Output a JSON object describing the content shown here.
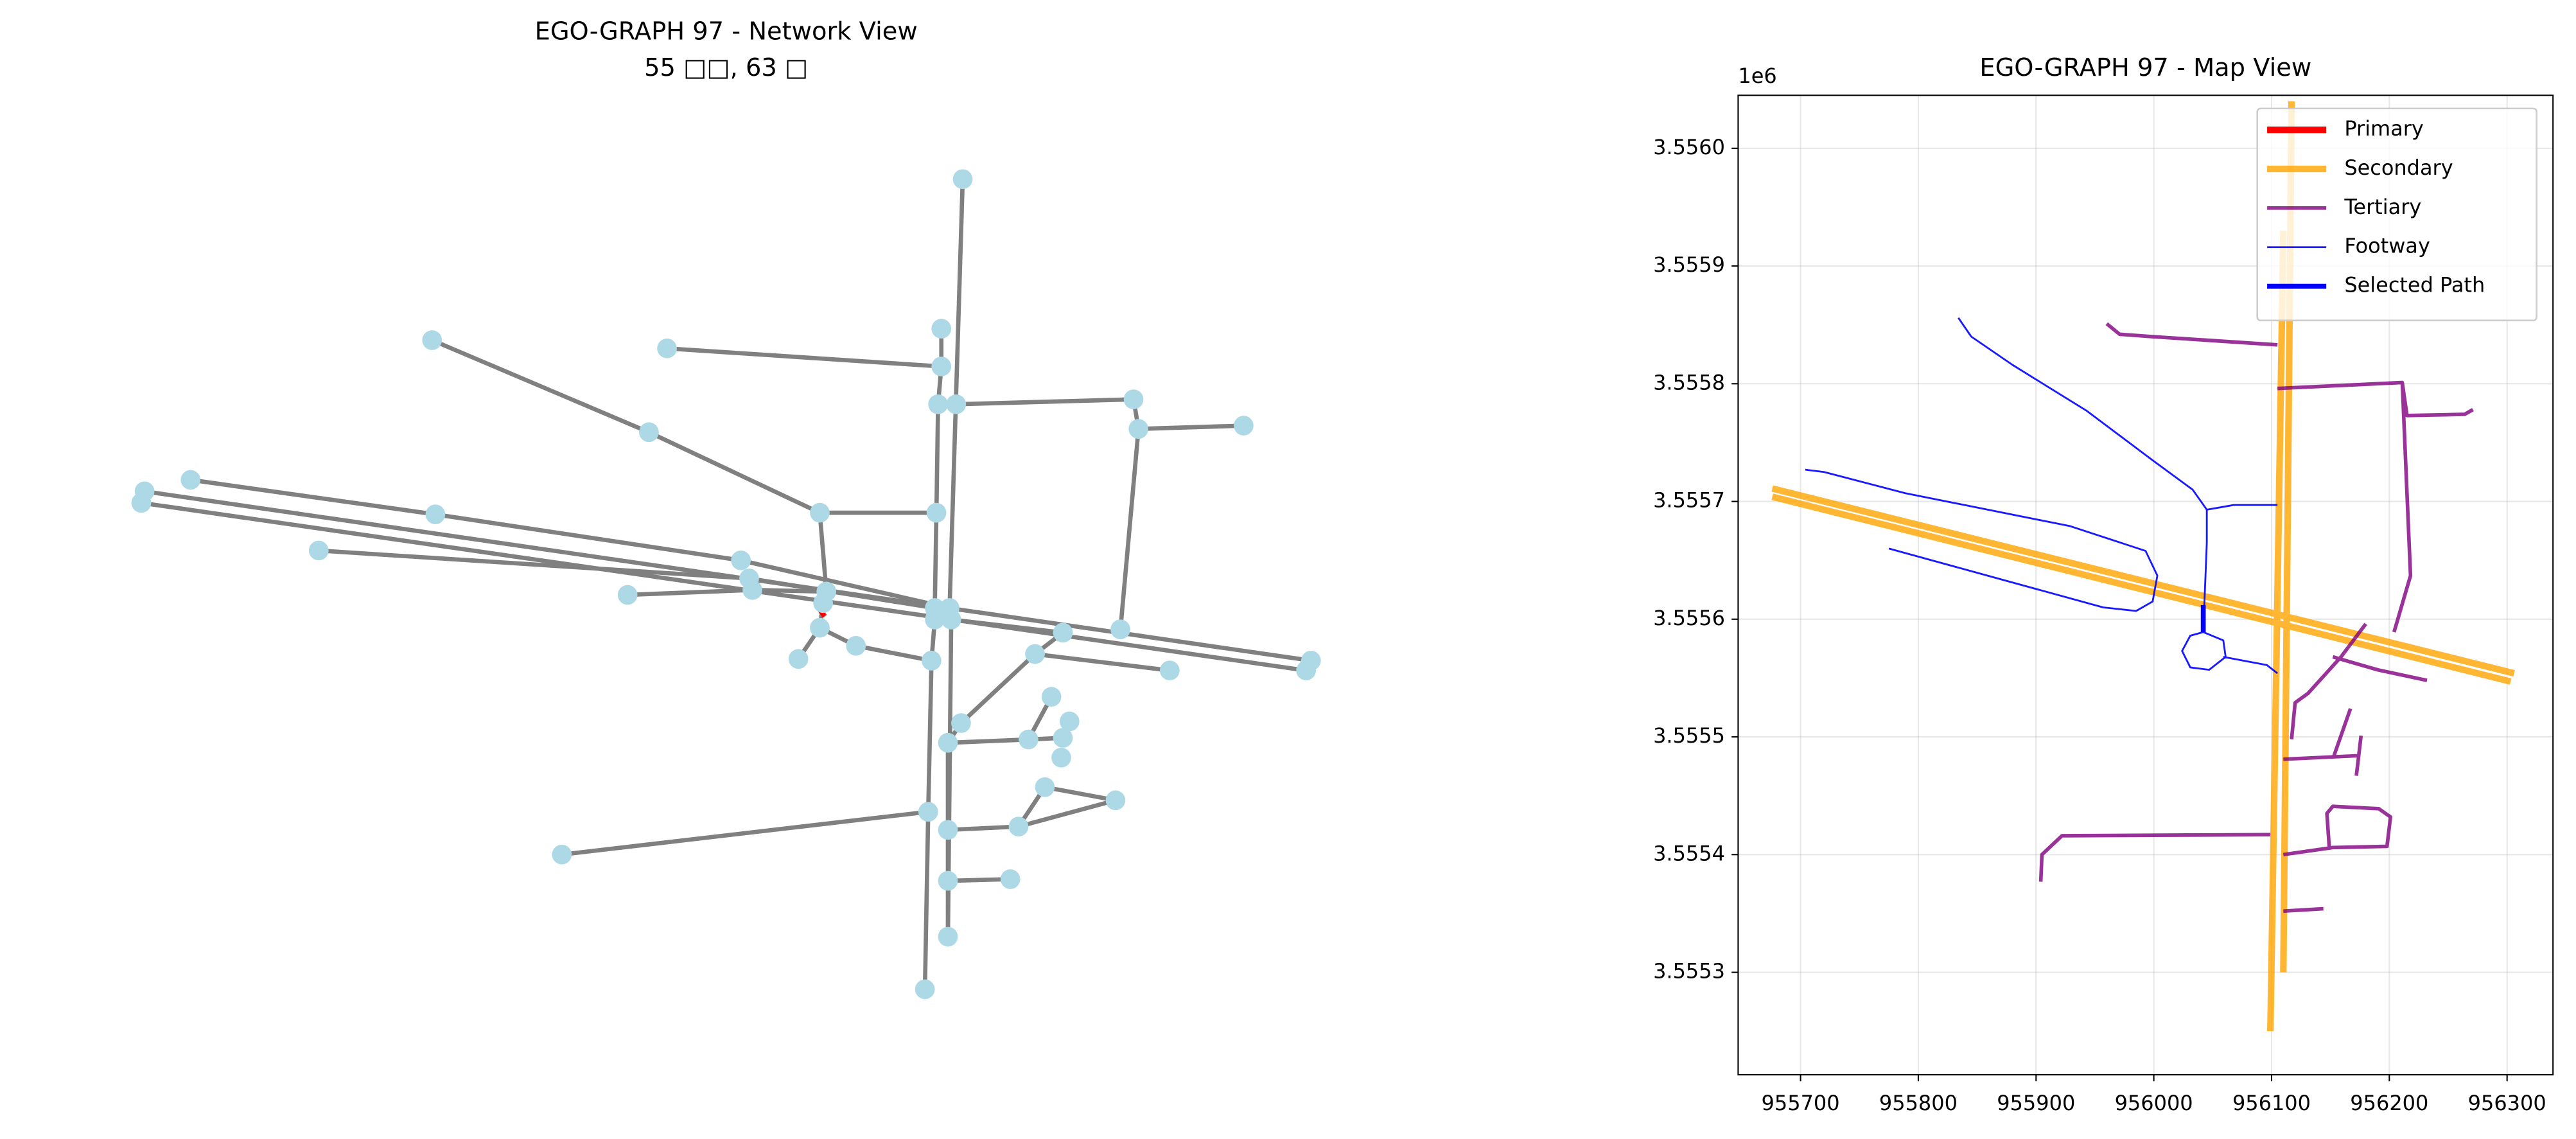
{
  "chart_data": [
    {
      "type": "network",
      "title": "EGO-GRAPH 97 - Network View",
      "subtitle": "55 □□, 63 □"
    },
    {
      "type": "line",
      "title": "EGO-GRAPH 97 - Map View",
      "xlim": [
        955647,
        956339
      ],
      "ylim": [
        3555213,
        3556045
      ],
      "xticks": [
        955700,
        955800,
        955900,
        956000,
        956100,
        956200,
        956300
      ],
      "yticks": [
        {
          "value": 3555300,
          "label": "3.5553"
        },
        {
          "value": 3555400,
          "label": "3.5554"
        },
        {
          "value": 3555500,
          "label": "3.5555"
        },
        {
          "value": 3555600,
          "label": "3.5556"
        },
        {
          "value": 3555700,
          "label": "3.5557"
        },
        {
          "value": 3555800,
          "label": "3.5558"
        },
        {
          "value": 3555900,
          "label": "3.5559"
        },
        {
          "value": 3556000,
          "label": "3.5560"
        }
      ],
      "y_offset_label": "1e6",
      "grid": true,
      "legend": "upper right",
      "series": [
        {
          "name": "Primary",
          "color": "#ff0000",
          "x": [],
          "values": []
        },
        {
          "name": "Secondary",
          "color": "#ffa500",
          "x": [
            955676,
            956306,
            null,
            955676,
            956303,
            null,
            956110,
            956099,
            null,
            956117,
            956110
          ],
          "values": [
            3555711,
            3555554,
            null,
            3555704,
            3555547,
            null,
            3555930,
            3555250,
            null,
            3556040,
            3555300
          ]
        },
        {
          "name": "Tertiary",
          "color": "#800080",
          "x": [
            955960,
            955971,
            955999,
            956105,
            null,
            956105,
            956211,
            956215,
            956264,
            956271,
            null,
            956211,
            956215,
            956218,
            956204,
            null,
            956117,
            956120,
            956131,
            956159,
            956180,
            null,
            956152,
            956190,
            956232,
            null,
            956110,
            956173,
            null,
            956153,
            956167,
            null,
            956172,
            956176,
            null,
            955904,
            955905,
            955922,
            956099,
            null,
            956110,
            956152,
            956198,
            956201,
            956191,
            956152,
            956147,
            956149,
            null,
            956110,
            956144
          ],
          "values": [
            3555851,
            3555842,
            3555840,
            3555833,
            null,
            3555796,
            3555801,
            3555773,
            3555774,
            3555778,
            null,
            3555801,
            3555707,
            3555637,
            3555589,
            null,
            3555498,
            3555529,
            3555537,
            3555568,
            3555596,
            null,
            3555568,
            3555557,
            3555548,
            null,
            3555481,
            3555484,
            null,
            3555484,
            3555524,
            null,
            3555467,
            3555501,
            null,
            3555377,
            3555400,
            3555416,
            3555417,
            null,
            3555400,
            3555406,
            3555407,
            3555432,
            3555439,
            3555441,
            3555435,
            3555406,
            null,
            3555352,
            3555354
          ]
        },
        {
          "name": "Footway",
          "color": "#0000ff",
          "x": [
            955834,
            955845,
            955880,
            955943,
            955999,
            956033,
            956045,
            956045,
            956042,
            null,
            956045,
            956068,
            956105,
            null,
            955704,
            955720,
            955789,
            955929,
            955993,
            956003,
            955999,
            955985,
            955957,
            955775,
            null,
            956042,
            956059,
            956061,
            956047,
            956031,
            956024,
            956031,
            956042,
            null,
            956059,
            956096,
            956105
          ],
          "values": [
            3555856,
            3555840,
            3555816,
            3555777,
            3555735,
            3555710,
            3555693,
            3555665,
            3555589,
            null,
            3555693,
            3555697,
            3555697,
            null,
            3555727,
            3555725,
            3555707,
            3555679,
            3555658,
            3555637,
            3555615,
            3555607,
            3555610,
            3555660,
            null,
            3555589,
            3555582,
            3555568,
            3555557,
            3555559,
            3555573,
            3555586,
            3555589,
            null,
            3555568,
            3555561,
            3555554
          ]
        },
        {
          "name": "Selected Path",
          "color": "#0000ff",
          "x": [
            956042,
            956042
          ],
          "values": [
            3555612,
            3555589
          ]
        }
      ]
    }
  ]
}
